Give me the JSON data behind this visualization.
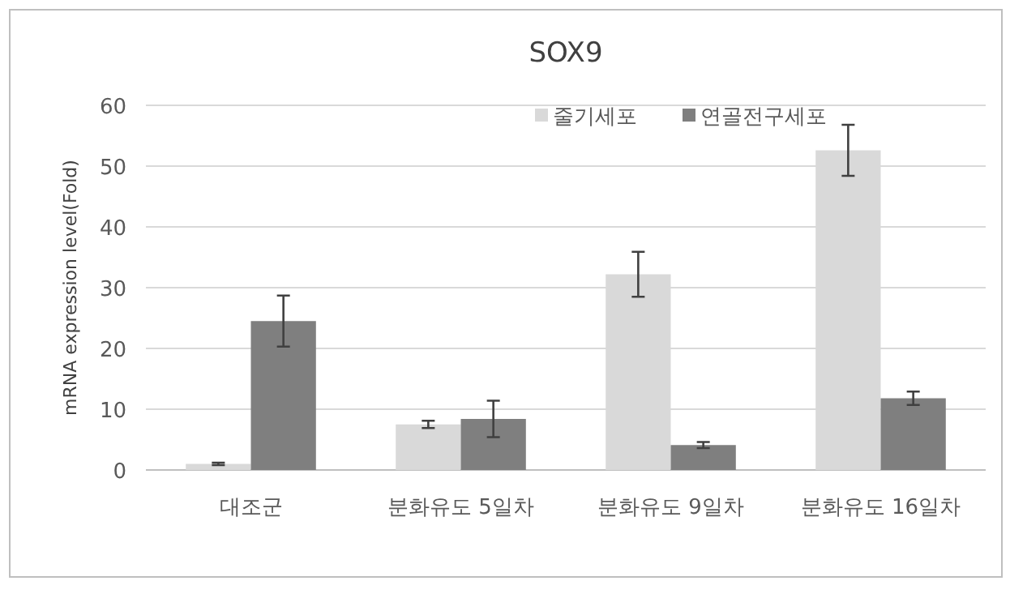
{
  "chart_data": {
    "type": "bar",
    "title": "SOX9",
    "ylabel": "mRNA expression level(Fold)",
    "categories": [
      "대조군",
      "분화유도 5일차",
      "분화유도 9일차",
      "분화유도 16일차"
    ],
    "series": [
      {
        "name": "줄기세포",
        "color": "#d9d9d9",
        "values": [
          1.0,
          7.5,
          32.2,
          52.6
        ],
        "errors": [
          0.2,
          0.6,
          3.7,
          4.2
        ]
      },
      {
        "name": "연골전구세포",
        "color": "#7f7f7f",
        "values": [
          24.5,
          8.4,
          4.1,
          11.8
        ],
        "errors": [
          4.2,
          3.0,
          0.5,
          1.1
        ]
      }
    ],
    "ylim": [
      0,
      60
    ],
    "yticks": [
      0,
      10,
      20,
      30,
      40,
      50,
      60
    ],
    "grid": "y",
    "legend": "top right"
  }
}
